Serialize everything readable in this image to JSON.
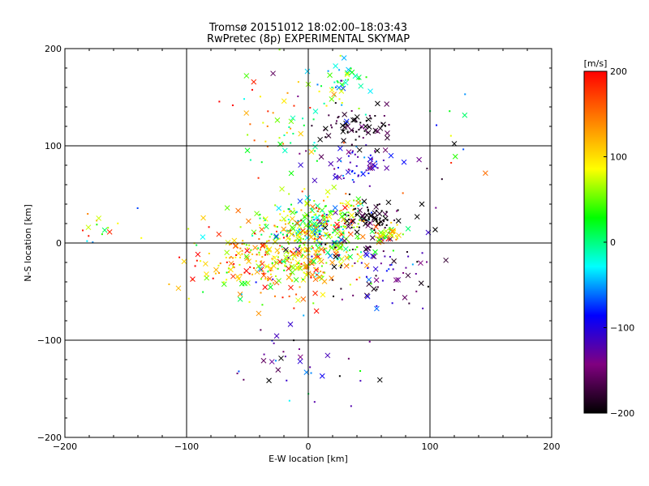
{
  "chart_data": {
    "type": "scatter",
    "title": "Tromsø 20151012 18:02:00–18:03:43",
    "subtitle": "RwPretec (8p) EXPERIMENTAL SKYMAP",
    "xlabel": "E-W location [km]",
    "ylabel": "N-S location [km]",
    "xlim": [
      -200,
      200
    ],
    "ylim": [
      -200,
      200
    ],
    "x_ticks": [
      -200,
      -100,
      0,
      100,
      200
    ],
    "y_ticks": [
      -200,
      -100,
      0,
      100,
      200
    ],
    "grid": true,
    "marker_types": [
      "cross",
      "dot"
    ],
    "clusters": [
      {
        "x": 10,
        "y": 20,
        "sx": 22,
        "sy": 14,
        "n": 260,
        "v": 40,
        "sv": 70
      },
      {
        "x": -40,
        "y": -20,
        "sx": 35,
        "sy": 18,
        "n": 200,
        "v": 120,
        "sv": 60
      },
      {
        "x": 0,
        "y": -10,
        "sx": 25,
        "sy": 20,
        "n": 220,
        "v": 80,
        "sv": 70
      },
      {
        "x": 40,
        "y": 120,
        "sx": 15,
        "sy": 10,
        "n": 70,
        "v": -190,
        "sv": 25
      },
      {
        "x": 40,
        "y": 80,
        "sx": 15,
        "sy": 10,
        "n": 60,
        "v": -110,
        "sv": 30
      },
      {
        "x": 25,
        "y": 165,
        "sx": 12,
        "sy": 15,
        "n": 45,
        "v": -10,
        "sv": 60
      },
      {
        "x": 50,
        "y": 25,
        "sx": 12,
        "sy": 8,
        "n": 70,
        "v": -200,
        "sv": 20
      },
      {
        "x": 60,
        "y": -20,
        "sx": 30,
        "sy": 25,
        "n": 90,
        "v": -160,
        "sv": 50
      },
      {
        "x": 65,
        "y": 10,
        "sx": 6,
        "sy": 5,
        "n": 40,
        "v": 100,
        "sv": 40
      },
      {
        "x": -170,
        "y": 15,
        "sx": 12,
        "sy": 12,
        "n": 16,
        "v": 100,
        "sv": 100
      },
      {
        "x": -30,
        "y": -120,
        "sx": 20,
        "sy": 25,
        "n": 25,
        "v": -120,
        "sv": 60
      },
      {
        "x": -20,
        "y": 120,
        "sx": 20,
        "sy": 30,
        "n": 60,
        "v": 60,
        "sv": 90
      },
      {
        "x": 120,
        "y": 80,
        "sx": 20,
        "sy": 30,
        "n": 15,
        "v": 0,
        "sv": 120
      },
      {
        "x": 30,
        "y": -140,
        "sx": 25,
        "sy": 30,
        "n": 12,
        "v": -120,
        "sv": 80
      }
    ],
    "colorbar": {
      "label": "[m/s]",
      "range": [
        -200,
        200
      ],
      "ticks": [
        200,
        100,
        0,
        -100,
        -200
      ],
      "tick_labels": [
        "200",
        "100",
        "0",
        "−100",
        "−200"
      ],
      "colormap": [
        "#000000",
        "#800080",
        "#0000ff",
        "#00ffff",
        "#00ff00",
        "#ffff00",
        "#ff8000",
        "#ff0000"
      ]
    }
  }
}
